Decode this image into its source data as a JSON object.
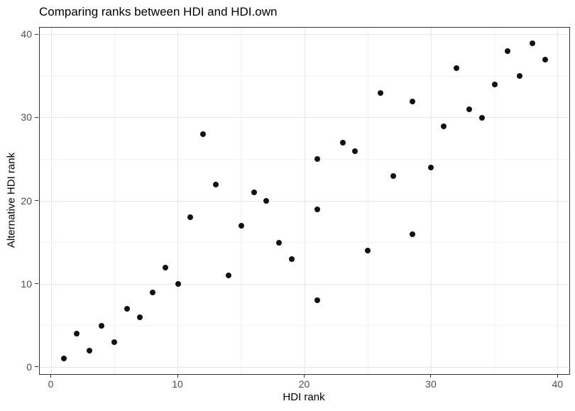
{
  "title": "Comparing ranks between HDI and HDI.own",
  "colors": {
    "background": "#ffffff",
    "panel_background": "#ffffff",
    "panel_border": "#333333",
    "grid_major": "#e7e7e7",
    "grid_minor": "#f3f3f3",
    "tick_mark": "#333333",
    "tick_label": "#4d4d4d",
    "text": "#000000",
    "point": "#111111"
  },
  "chart_data": {
    "type": "scatter",
    "title": "Comparing ranks between HDI and HDI.own",
    "xlabel": "HDI rank",
    "ylabel": "Alternative HDI rank",
    "xlim": [
      -0.9,
      40.9
    ],
    "ylim": [
      -0.85,
      40.85
    ],
    "x_major_ticks": [
      0,
      10,
      20,
      30,
      40
    ],
    "x_minor_gridlines": [
      5,
      15,
      25,
      35
    ],
    "y_major_ticks": [
      0,
      10,
      20,
      30,
      40
    ],
    "y_minor_gridlines": [
      5,
      15,
      25,
      35
    ],
    "grid": true,
    "legend": false,
    "point_style": "filled-black-circle",
    "points": [
      {
        "x": 1,
        "y": 1
      },
      {
        "x": 2,
        "y": 4
      },
      {
        "x": 3,
        "y": 2
      },
      {
        "x": 4,
        "y": 5
      },
      {
        "x": 5,
        "y": 3
      },
      {
        "x": 6,
        "y": 7
      },
      {
        "x": 7,
        "y": 6
      },
      {
        "x": 8,
        "y": 9
      },
      {
        "x": 9,
        "y": 12
      },
      {
        "x": 10,
        "y": 10
      },
      {
        "x": 11,
        "y": 18
      },
      {
        "x": 12,
        "y": 28
      },
      {
        "x": 13,
        "y": 22
      },
      {
        "x": 14,
        "y": 11
      },
      {
        "x": 15,
        "y": 17
      },
      {
        "x": 16,
        "y": 21
      },
      {
        "x": 17,
        "y": 20
      },
      {
        "x": 18,
        "y": 15
      },
      {
        "x": 19,
        "y": 13
      },
      {
        "x": 21,
        "y": 25
      },
      {
        "x": 21,
        "y": 19
      },
      {
        "x": 21,
        "y": 8
      },
      {
        "x": 23,
        "y": 27
      },
      {
        "x": 24,
        "y": 26
      },
      {
        "x": 25,
        "y": 14
      },
      {
        "x": 26,
        "y": 33
      },
      {
        "x": 27,
        "y": 23
      },
      {
        "x": 28.5,
        "y": 32
      },
      {
        "x": 28.5,
        "y": 16
      },
      {
        "x": 30,
        "y": 24
      },
      {
        "x": 31,
        "y": 29
      },
      {
        "x": 32,
        "y": 36
      },
      {
        "x": 33,
        "y": 31
      },
      {
        "x": 34,
        "y": 30
      },
      {
        "x": 35,
        "y": 34
      },
      {
        "x": 36,
        "y": 38
      },
      {
        "x": 37,
        "y": 35
      },
      {
        "x": 38,
        "y": 39
      },
      {
        "x": 39,
        "y": 37
      }
    ]
  }
}
